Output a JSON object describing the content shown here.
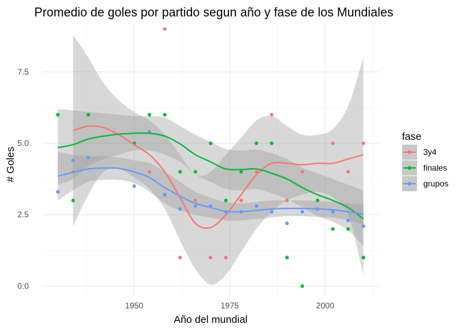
{
  "chart_data": {
    "type": "scatter",
    "title": "Promedio de goles por partido segun año y fase de los Mundiales",
    "xlabel": "Año del mundial",
    "ylabel": "# Goles",
    "xlim": [
      1926,
      2014
    ],
    "ylim": [
      -0.35,
      9.2
    ],
    "x_ticks": [
      1950,
      1975,
      2000
    ],
    "y_ticks": [
      0.0,
      2.5,
      5.0,
      7.5
    ],
    "x_tick_labels": [
      "1950",
      "1975",
      "2000"
    ],
    "y_tick_labels": [
      "0.0",
      "2.5",
      "5.0",
      "7.5"
    ],
    "grid": true,
    "legend": {
      "title": "fase",
      "position": "right"
    },
    "series": [
      {
        "name": "3y4",
        "color": "#F8766D",
        "points": [
          [
            1934,
            4.0
          ],
          [
            1938,
            6.0
          ],
          [
            1954,
            4.0
          ],
          [
            1958,
            9.0
          ],
          [
            1962,
            1.0
          ],
          [
            1966,
            3.0
          ],
          [
            1970,
            1.0
          ],
          [
            1974,
            1.0
          ],
          [
            1978,
            3.0
          ],
          [
            1982,
            4.0
          ],
          [
            1986,
            6.0
          ],
          [
            1990,
            3.0
          ],
          [
            1994,
            4.0
          ],
          [
            1998,
            3.0
          ],
          [
            2002,
            5.0
          ],
          [
            2006,
            4.0
          ],
          [
            2010,
            5.0
          ]
        ],
        "smooth": [
          [
            1934,
            5.45
          ],
          [
            1938,
            5.6
          ],
          [
            1942,
            5.55
          ],
          [
            1946,
            5.3
          ],
          [
            1950,
            4.95
          ],
          [
            1954,
            4.6
          ],
          [
            1958,
            4.0
          ],
          [
            1962,
            3.1
          ],
          [
            1966,
            2.2
          ],
          [
            1970,
            2.05
          ],
          [
            1974,
            2.5
          ],
          [
            1978,
            3.2
          ],
          [
            1982,
            3.9
          ],
          [
            1986,
            4.3
          ],
          [
            1990,
            4.3
          ],
          [
            1994,
            4.25
          ],
          [
            1998,
            4.3
          ],
          [
            2002,
            4.3
          ],
          [
            2006,
            4.45
          ],
          [
            2010,
            4.6
          ]
        ],
        "band_upper": [
          [
            1934,
            8.8
          ],
          [
            1938,
            8.0
          ],
          [
            1942,
            7.1
          ],
          [
            1946,
            6.5
          ],
          [
            1950,
            6.1
          ],
          [
            1954,
            5.8
          ],
          [
            1958,
            5.3
          ],
          [
            1962,
            4.6
          ],
          [
            1966,
            3.9
          ],
          [
            1970,
            4.0
          ],
          [
            1974,
            4.6
          ],
          [
            1978,
            5.2
          ],
          [
            1982,
            5.8
          ],
          [
            1986,
            5.95
          ],
          [
            1990,
            5.6
          ],
          [
            1994,
            5.3
          ],
          [
            1998,
            5.3
          ],
          [
            2002,
            5.5
          ],
          [
            2006,
            6.3
          ],
          [
            2010,
            8.0
          ]
        ],
        "band_lower": [
          [
            1934,
            2.1
          ],
          [
            1938,
            3.2
          ],
          [
            1942,
            4.0
          ],
          [
            1946,
            4.1
          ],
          [
            1950,
            3.8
          ],
          [
            1954,
            3.4
          ],
          [
            1958,
            2.7
          ],
          [
            1962,
            1.6
          ],
          [
            1966,
            0.6
          ],
          [
            1970,
            0.05
          ],
          [
            1974,
            0.4
          ],
          [
            1978,
            1.2
          ],
          [
            1982,
            2.0
          ],
          [
            1986,
            2.6
          ],
          [
            1990,
            3.0
          ],
          [
            1994,
            3.2
          ],
          [
            1998,
            3.3
          ],
          [
            2002,
            3.1
          ],
          [
            2006,
            2.5
          ],
          [
            2010,
            0.4
          ]
        ]
      },
      {
        "name": "finales",
        "color": "#00BA38",
        "points": [
          [
            1930,
            6.0
          ],
          [
            1934,
            3.0
          ],
          [
            1938,
            6.0
          ],
          [
            1950,
            5.0
          ],
          [
            1954,
            6.0
          ],
          [
            1958,
            6.0
          ],
          [
            1962,
            4.0
          ],
          [
            1966,
            4.0
          ],
          [
            1970,
            5.0
          ],
          [
            1974,
            3.0
          ],
          [
            1978,
            4.0
          ],
          [
            1982,
            5.0
          ],
          [
            1986,
            5.0
          ],
          [
            1990,
            1.0
          ],
          [
            1994,
            0.0
          ],
          [
            1998,
            3.0
          ],
          [
            2002,
            2.0
          ],
          [
            2006,
            2.0
          ],
          [
            2010,
            1.0
          ]
        ],
        "smooth": [
          [
            1930,
            4.85
          ],
          [
            1934,
            4.95
          ],
          [
            1938,
            5.15
          ],
          [
            1942,
            5.25
          ],
          [
            1946,
            5.32
          ],
          [
            1950,
            5.35
          ],
          [
            1954,
            5.35
          ],
          [
            1958,
            5.25
          ],
          [
            1962,
            4.98
          ],
          [
            1966,
            4.6
          ],
          [
            1970,
            4.35
          ],
          [
            1974,
            4.1
          ],
          [
            1978,
            4.08
          ],
          [
            1982,
            4.1
          ],
          [
            1986,
            3.95
          ],
          [
            1990,
            3.75
          ],
          [
            1994,
            3.45
          ],
          [
            1998,
            3.2
          ],
          [
            2002,
            3.0
          ],
          [
            2006,
            2.75
          ],
          [
            2010,
            2.35
          ]
        ],
        "band_upper": [
          [
            1930,
            6.2
          ],
          [
            1934,
            6.15
          ],
          [
            1938,
            6.1
          ],
          [
            1942,
            6.05
          ],
          [
            1946,
            6.0
          ],
          [
            1950,
            5.95
          ],
          [
            1954,
            5.95
          ],
          [
            1958,
            5.9
          ],
          [
            1962,
            5.6
          ],
          [
            1966,
            5.3
          ],
          [
            1970,
            5.05
          ],
          [
            1974,
            4.8
          ],
          [
            1978,
            4.75
          ],
          [
            1982,
            4.78
          ],
          [
            1986,
            4.65
          ],
          [
            1990,
            4.45
          ],
          [
            1994,
            4.15
          ],
          [
            1998,
            3.95
          ],
          [
            2002,
            3.75
          ],
          [
            2006,
            3.55
          ],
          [
            2010,
            3.35
          ]
        ],
        "band_lower": [
          [
            1930,
            3.55
          ],
          [
            1934,
            3.75
          ],
          [
            1938,
            4.2
          ],
          [
            1942,
            4.45
          ],
          [
            1946,
            4.6
          ],
          [
            1950,
            4.75
          ],
          [
            1954,
            4.75
          ],
          [
            1958,
            4.6
          ],
          [
            1962,
            4.35
          ],
          [
            1966,
            3.9
          ],
          [
            1970,
            3.65
          ],
          [
            1974,
            3.4
          ],
          [
            1978,
            3.35
          ],
          [
            1982,
            3.4
          ],
          [
            1986,
            3.25
          ],
          [
            1990,
            3.05
          ],
          [
            1994,
            2.75
          ],
          [
            1998,
            2.45
          ],
          [
            2002,
            2.25
          ],
          [
            2006,
            1.95
          ],
          [
            2010,
            1.4
          ]
        ]
      },
      {
        "name": "grupos",
        "color": "#619CFF",
        "points": [
          [
            1930,
            3.3
          ],
          [
            1934,
            4.4
          ],
          [
            1938,
            4.5
          ],
          [
            1950,
            3.5
          ],
          [
            1954,
            5.4
          ],
          [
            1958,
            3.2
          ],
          [
            1962,
            2.7
          ],
          [
            1966,
            2.8
          ],
          [
            1970,
            2.8
          ],
          [
            1974,
            2.6
          ],
          [
            1978,
            2.6
          ],
          [
            1982,
            2.8
          ],
          [
            1986,
            2.6
          ],
          [
            1990,
            2.2
          ],
          [
            1994,
            2.6
          ],
          [
            1998,
            2.7
          ],
          [
            2002,
            2.6
          ],
          [
            2006,
            2.3
          ],
          [
            2010,
            2.1
          ]
        ],
        "smooth": [
          [
            1930,
            3.85
          ],
          [
            1934,
            3.98
          ],
          [
            1938,
            4.1
          ],
          [
            1942,
            4.13
          ],
          [
            1946,
            4.12
          ],
          [
            1950,
            4.0
          ],
          [
            1954,
            3.8
          ],
          [
            1958,
            3.45
          ],
          [
            1962,
            3.15
          ],
          [
            1966,
            2.9
          ],
          [
            1970,
            2.75
          ],
          [
            1974,
            2.62
          ],
          [
            1978,
            2.6
          ],
          [
            1982,
            2.65
          ],
          [
            1986,
            2.7
          ],
          [
            1990,
            2.72
          ],
          [
            1994,
            2.72
          ],
          [
            1998,
            2.7
          ],
          [
            2002,
            2.67
          ],
          [
            2006,
            2.6
          ],
          [
            2010,
            2.52
          ]
        ],
        "band_upper": [
          [
            1930,
            4.7
          ],
          [
            1934,
            4.6
          ],
          [
            1938,
            4.55
          ],
          [
            1942,
            4.55
          ],
          [
            1946,
            4.5
          ],
          [
            1950,
            4.4
          ],
          [
            1954,
            4.3
          ],
          [
            1958,
            4.0
          ],
          [
            1962,
            3.65
          ],
          [
            1966,
            3.3
          ],
          [
            1970,
            3.1
          ],
          [
            1974,
            2.95
          ],
          [
            1978,
            2.9
          ],
          [
            1982,
            2.95
          ],
          [
            1986,
            3.0
          ],
          [
            1990,
            3.0
          ],
          [
            1994,
            3.0
          ],
          [
            1998,
            2.98
          ],
          [
            2002,
            2.95
          ],
          [
            2006,
            2.9
          ],
          [
            2010,
            2.85
          ]
        ],
        "band_lower": [
          [
            1930,
            3.0
          ],
          [
            1934,
            3.35
          ],
          [
            1938,
            3.65
          ],
          [
            1942,
            3.72
          ],
          [
            1946,
            3.72
          ],
          [
            1950,
            3.6
          ],
          [
            1954,
            3.3
          ],
          [
            1958,
            2.9
          ],
          [
            1962,
            2.65
          ],
          [
            1966,
            2.5
          ],
          [
            1970,
            2.4
          ],
          [
            1974,
            2.3
          ],
          [
            1978,
            2.3
          ],
          [
            1982,
            2.35
          ],
          [
            1986,
            2.4
          ],
          [
            1990,
            2.45
          ],
          [
            1994,
            2.45
          ],
          [
            1998,
            2.42
          ],
          [
            2002,
            2.4
          ],
          [
            2006,
            2.3
          ],
          [
            2010,
            2.15
          ]
        ]
      }
    ]
  }
}
